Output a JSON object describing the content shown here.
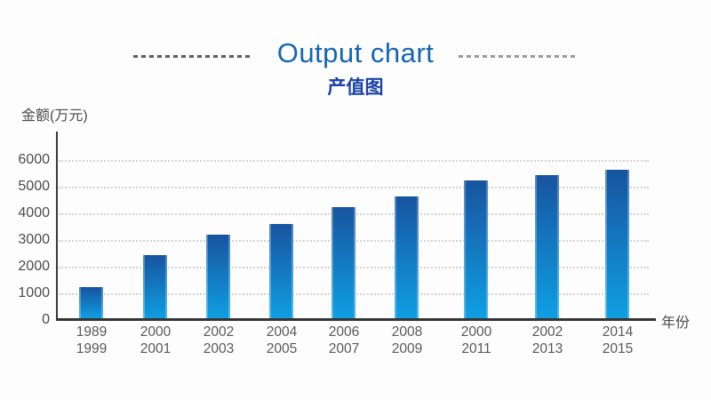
{
  "header": {
    "title": "Output chart",
    "subtitle": "产值图"
  },
  "colors": {
    "title": "#1566b2",
    "subtitle": "#1a41a3",
    "bar_top": "#17549f",
    "bar_bottom": "#0f9fe3",
    "axis": "#343434",
    "gridline": "#d2d2d2"
  },
  "chart_data": {
    "type": "bar",
    "title": "Output chart",
    "subtitle": "产值图",
    "ylabel": "金额(万元)",
    "xlabel": "年份",
    "categories": [
      [
        "1989",
        "1999"
      ],
      [
        "2000",
        "2001"
      ],
      [
        "2002",
        "2003"
      ],
      [
        "2004",
        "2005"
      ],
      [
        "2006",
        "2007"
      ],
      [
        "2008",
        "2009"
      ],
      [
        "2000",
        "2011"
      ],
      [
        "2002",
        "2013"
      ],
      [
        "2014",
        "2015"
      ]
    ],
    "values": [
      1200,
      2400,
      3150,
      3550,
      4200,
      4600,
      5200,
      5400,
      5600
    ],
    "ylim": [
      0,
      6000
    ],
    "yticks": [
      0,
      1000,
      2000,
      3000,
      4000,
      5000,
      6000
    ],
    "grid": "horizontal dotted",
    "legend": "none",
    "bar_gradient": [
      "#17549f",
      "#0f9fe3"
    ]
  }
}
